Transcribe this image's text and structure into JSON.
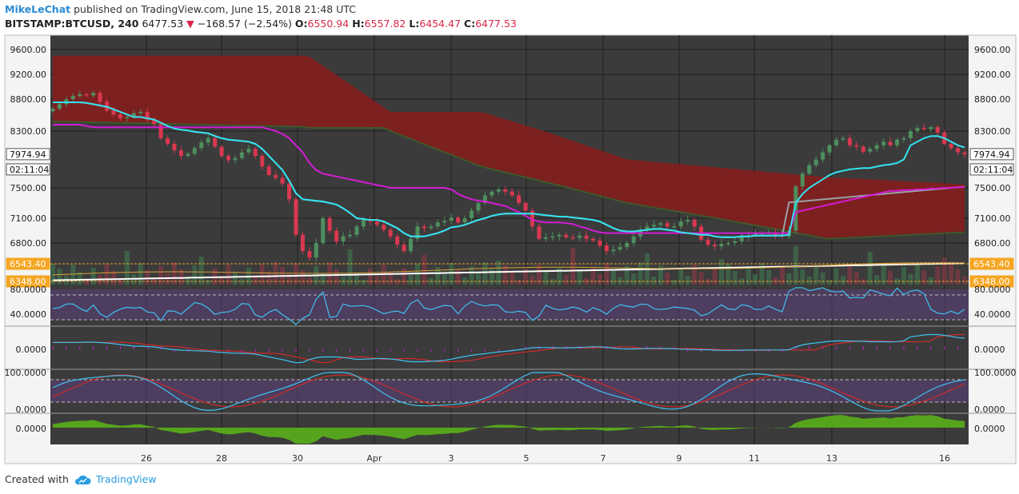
{
  "header": {
    "user": "MikeLeChat",
    "published": " published on TradingView.com, June 15, 2018 21:48 UTC",
    "symbol": "BITSTAMP:BTCUSD, 240",
    "last": "6477.53",
    "change": "−168.57 (−2.54%)",
    "o_label": "O:",
    "o": "6550.94",
    "h_label": "H:",
    "h": "6557.82",
    "l_label": "L:",
    "l": "6454.47",
    "c_label": "C:",
    "c": "6477.53"
  },
  "footer": {
    "created": "Created with",
    "brand": "TradingView"
  },
  "colors": {
    "background": "#3b3b3b",
    "up": "#4e8f5e",
    "down": "#d9384f",
    "cloud": "#8a1c1c",
    "kijun": "#d41cd4",
    "tenkan": "#32e3f0",
    "osc": "#3fc2f2",
    "signal": "#d12a2a",
    "green_hist": "#56a41d",
    "band": "#5c3f7e"
  },
  "chart_data": [
    {
      "type": "candlestick",
      "panel": "price",
      "x_tick_labels": [
        "26",
        "28",
        "30",
        "Apr",
        "3",
        "5",
        "7",
        "9",
        "11",
        "13",
        "16"
      ],
      "y_tick_labels": [
        "9600.00",
        "9200.00",
        "8800.00",
        "8300.00",
        "7500.00",
        "7100.00",
        "6800.00"
      ],
      "y_ticks": [
        9600,
        9200,
        8800,
        8300,
        7500,
        7100,
        6800
      ],
      "price_tags": [
        {
          "text": "7974.94",
          "value": 7974.94,
          "kind": "white"
        },
        {
          "text": "02:11:04",
          "value": 7760,
          "kind": "white"
        },
        {
          "text": "6543.40",
          "value": 6543.4,
          "kind": "orange"
        },
        {
          "text": "6348.00",
          "value": 6348,
          "kind": "orange"
        }
      ],
      "close": [
        8650,
        8720,
        8800,
        8850,
        8880,
        8860,
        8900,
        8760,
        8620,
        8560,
        8500,
        8520,
        8580,
        8600,
        8480,
        8410,
        8200,
        8120,
        8030,
        7950,
        7980,
        8060,
        8140,
        8200,
        8080,
        7950,
        7890,
        7920,
        8000,
        8050,
        7950,
        7800,
        7680,
        7640,
        7560,
        7350,
        6900,
        6700,
        6620,
        6800,
        7100,
        6950,
        6820,
        6880,
        6900,
        7000,
        7080,
        7060,
        7020,
        6960,
        6880,
        6780,
        6700,
        6850,
        7000,
        6980,
        7000,
        7050,
        7070,
        7110,
        7050,
        7100,
        7200,
        7300,
        7400,
        7450,
        7480,
        7450,
        7400,
        7300,
        7200,
        7000,
        6850,
        6870,
        6880,
        6900,
        6870,
        6860,
        6890,
        6850,
        6830,
        6770,
        6700,
        6720,
        6750,
        6800,
        6880,
        6960,
        7000,
        7020,
        7040,
        7000,
        7000,
        7060,
        7080,
        7000,
        6840,
        6780,
        6760,
        6790,
        6800,
        6820,
        6870,
        6890,
        6910,
        6920,
        6930,
        6900,
        6880,
        6950,
        7520,
        7700,
        7820,
        7900,
        8000,
        8100,
        8180,
        8200,
        8100,
        8080,
        8010,
        8050,
        8100,
        8150,
        8100,
        8180,
        8200,
        8300,
        8350,
        8330,
        8360,
        8280,
        8120,
        8060,
        8000,
        7975
      ],
      "tenkan": [
        8750,
        8750,
        8750,
        8750,
        8750,
        8740,
        8720,
        8700,
        8680,
        8640,
        8600,
        8560,
        8520,
        8520,
        8500,
        8480,
        8430,
        8380,
        8340,
        8320,
        8310,
        8290,
        8280,
        8270,
        8230,
        8200,
        8180,
        8170,
        8160,
        8150,
        8120,
        8050,
        7950,
        7850,
        7750,
        7600,
        7430,
        7350,
        7340,
        7330,
        7320,
        7300,
        7280,
        7230,
        7170,
        7100,
        7090,
        7080,
        7080,
        7060,
        7020,
        6980,
        6920,
        6880,
        6880,
        6880,
        6900,
        6920,
        6950,
        6990,
        7000,
        7020,
        7050,
        7080,
        7100,
        7130,
        7150,
        7160,
        7160,
        7160,
        7160,
        7160,
        7150,
        7140,
        7130,
        7120,
        7120,
        7110,
        7100,
        7090,
        7080,
        7060,
        7020,
        6980,
        6950,
        6940,
        6940,
        6950,
        6960,
        6970,
        6970,
        6960,
        6950,
        6930,
        6920,
        6910,
        6900,
        6900,
        6880,
        6870,
        6870,
        6870,
        6880,
        6880,
        6890,
        6890,
        6890,
        6890,
        6890,
        6900,
        7300,
        7420,
        7500,
        7560,
        7620,
        7680,
        7720,
        7740,
        7760,
        7770,
        7780,
        7780,
        7800,
        7820,
        7830,
        7850,
        7900,
        8100,
        8150,
        8200,
        8230,
        8230,
        8200,
        8150,
        8100,
        8070
      ],
      "kijun": [
        8400,
        8400,
        8400,
        8400,
        8400,
        8380,
        8360,
        8360,
        8360,
        8360,
        8360,
        8360,
        8360,
        8360,
        8360,
        8360,
        8360,
        8360,
        8360,
        8360,
        8360,
        8360,
        8360,
        8360,
        8360,
        8360,
        8360,
        8360,
        8360,
        8360,
        8360,
        8360,
        8330,
        8300,
        8260,
        8200,
        8100,
        8000,
        7850,
        7750,
        7700,
        7680,
        7660,
        7640,
        7620,
        7600,
        7580,
        7560,
        7540,
        7520,
        7500,
        7500,
        7500,
        7500,
        7500,
        7500,
        7500,
        7500,
        7500,
        7480,
        7420,
        7380,
        7350,
        7330,
        7320,
        7300,
        7280,
        7260,
        7220,
        7180,
        7130,
        7080,
        7060,
        7050,
        7050,
        7050,
        7040,
        7030,
        7000,
        6980,
        6950,
        6930,
        6920,
        6920,
        6920,
        6920,
        6920,
        6920,
        6920,
        6920,
        6920,
        6920,
        6920,
        6920,
        6920,
        6920,
        6920,
        6920,
        6920,
        6920,
        6920,
        6920,
        6920,
        6920,
        6920,
        6920,
        6920,
        6920,
        6920,
        6920,
        7180,
        7200,
        7220,
        7240,
        7260,
        7280,
        7300,
        7320,
        7340,
        7360,
        7380,
        7400,
        7420,
        7440,
        7460,
        7460,
        7470,
        7470,
        7480,
        7480,
        7490,
        7490,
        7500,
        7500,
        7510,
        7510
      ]
    },
    {
      "type": "line",
      "panel": "rsi",
      "y_tick_labels": [
        "80.0000",
        "40.0000"
      ]
    },
    {
      "type": "line",
      "panel": "macd",
      "y_tick_labels": [
        "0.0000"
      ]
    },
    {
      "type": "line",
      "panel": "stochastic",
      "y_tick_labels": [
        "100.0000",
        "0.0000"
      ]
    },
    {
      "type": "area",
      "panel": "momentum",
      "y_tick_labels": [
        "0.0000"
      ]
    }
  ]
}
